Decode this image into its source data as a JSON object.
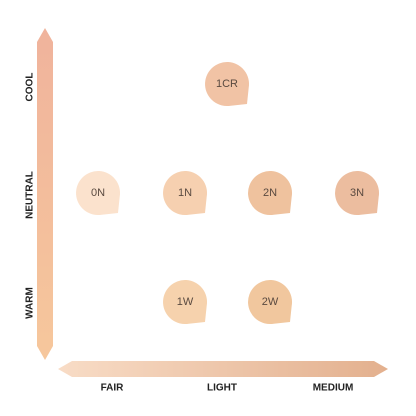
{
  "axes": {
    "y_labels": [
      "COOL",
      "NEUTRAL",
      "WARM"
    ],
    "x_labels": [
      "FAIR",
      "LIGHT",
      "MEDIUM"
    ]
  },
  "nodes": [
    {
      "label": "1CR",
      "color": "#f1c3a5"
    },
    {
      "label": "0N",
      "color": "#fbe2cd"
    },
    {
      "label": "1N",
      "color": "#f6d0b0"
    },
    {
      "label": "2N",
      "color": "#efc29e"
    },
    {
      "label": "3N",
      "color": "#ecbd9f"
    },
    {
      "label": "1W",
      "color": "#f6d2ad"
    },
    {
      "label": "2W",
      "color": "#f1c79e"
    }
  ]
}
